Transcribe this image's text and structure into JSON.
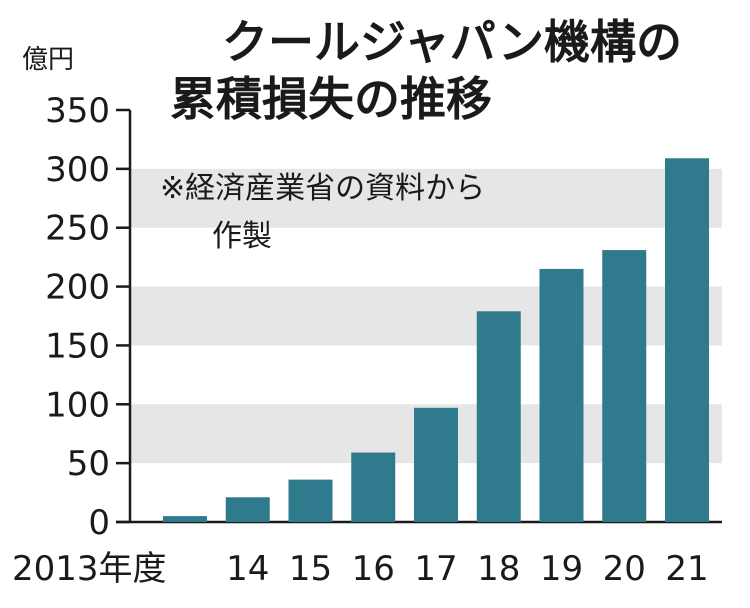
{
  "chart_data": {
    "type": "bar",
    "title": [
      "クールジャパン機構の",
      "累積損失の推移"
    ],
    "ylabel": "億円",
    "note": [
      "※経済産業省の資料から",
      "作製"
    ],
    "categories": [
      "2013年度",
      "14",
      "15",
      "16",
      "17",
      "18",
      "19",
      "20",
      "21"
    ],
    "values": [
      5,
      21,
      36,
      59,
      97,
      179,
      215,
      231,
      309
    ],
    "ylim": [
      0,
      350
    ],
    "yticks": [
      "0",
      "50",
      "100",
      "150",
      "200",
      "250",
      "300",
      "350"
    ],
    "grid": "alternating horizontal bands",
    "colors": {
      "bar": "#2f7a8d",
      "band": "#e6e6e6",
      "axis": "#1a1a1a"
    }
  }
}
